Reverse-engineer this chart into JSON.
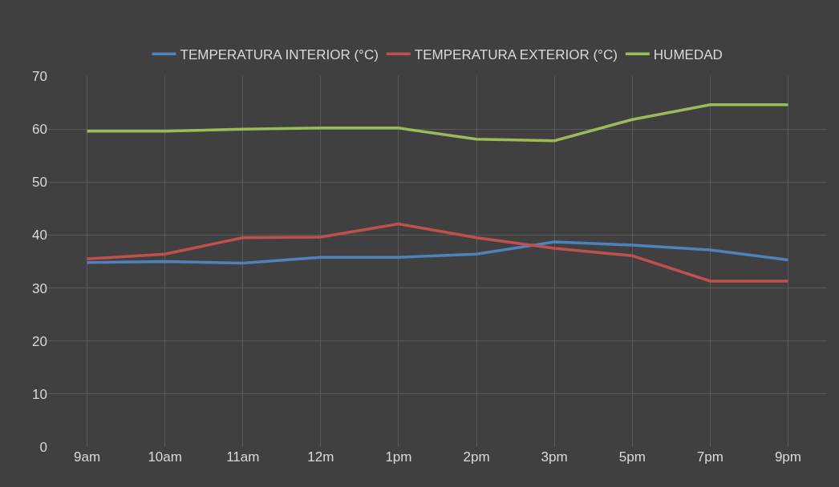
{
  "chart_data": {
    "type": "line",
    "categories": [
      "9am",
      "10am",
      "11am",
      "12m",
      "1pm",
      "2pm",
      "3pm",
      "5pm",
      "7pm",
      "9pm"
    ],
    "series": [
      {
        "name": "TEMPERATURA INTERIOR (°C)",
        "color": "#4f81bd",
        "values": [
          34.8,
          35.0,
          34.7,
          35.8,
          35.8,
          36.4,
          38.7,
          38.1,
          37.2,
          35.3
        ]
      },
      {
        "name": "TEMPERATURA EXTERIOR (°C)",
        "color": "#c0504d",
        "values": [
          35.5,
          36.4,
          39.5,
          39.6,
          42.1,
          39.5,
          37.5,
          36.1,
          31.3,
          31.3
        ]
      },
      {
        "name": "HUMEDAD",
        "color": "#9bbb59",
        "values": [
          59.6,
          59.6,
          60.0,
          60.2,
          60.2,
          58.1,
          57.8,
          61.8,
          64.6,
          64.6
        ]
      }
    ],
    "ylim": [
      0,
      70
    ],
    "yticks": [
      0,
      10,
      20,
      30,
      40,
      50,
      60,
      70
    ],
    "grid": true,
    "legend": "top",
    "marker": "none",
    "line_style": "solid"
  }
}
